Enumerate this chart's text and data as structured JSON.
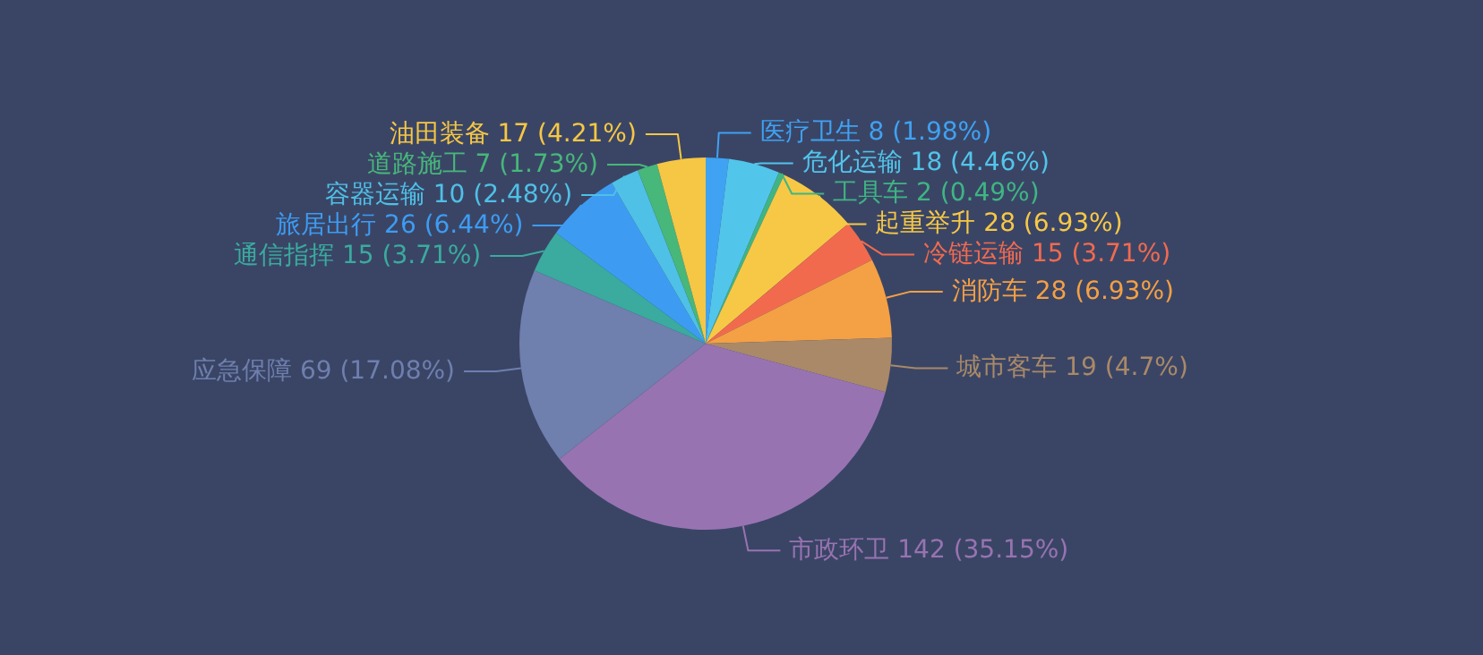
{
  "chart_data": {
    "type": "pie",
    "categories": [
      "医疗卫生",
      "危化运输",
      "工具车",
      "起重举升",
      "冷链运输",
      "消防车",
      "城市客车",
      "市政环卫",
      "应急保障",
      "通信指挥",
      "旅居出行",
      "容器运输",
      "道路施工",
      "油田装备"
    ],
    "values": [
      8,
      18,
      2,
      28,
      15,
      28,
      19,
      142,
      69,
      15,
      26,
      10,
      7,
      17
    ],
    "value_labels": [
      "8  (1.98%)",
      "18  (4.46%)",
      "2  (0.49%)",
      "28  (6.93%)",
      "15  (3.71%)",
      "28  (6.93%)",
      "19  (4.7%)",
      "142  (35.15%)",
      "69  (17.08%)",
      "15  (3.71%)",
      "26  (6.44%)",
      "10  (2.48%)",
      "7  (1.73%)",
      "17  (4.21%)"
    ],
    "colors": [
      "#3fa2f2",
      "#52c5ea",
      "#3fb583",
      "#f7c846",
      "#f26a4e",
      "#f4a044",
      "#a98968",
      "#9873b1",
      "#6f7fae",
      "#3aab9e",
      "#3d9cf2",
      "#4fc0e6",
      "#47b77a",
      "#f6c744"
    ]
  }
}
